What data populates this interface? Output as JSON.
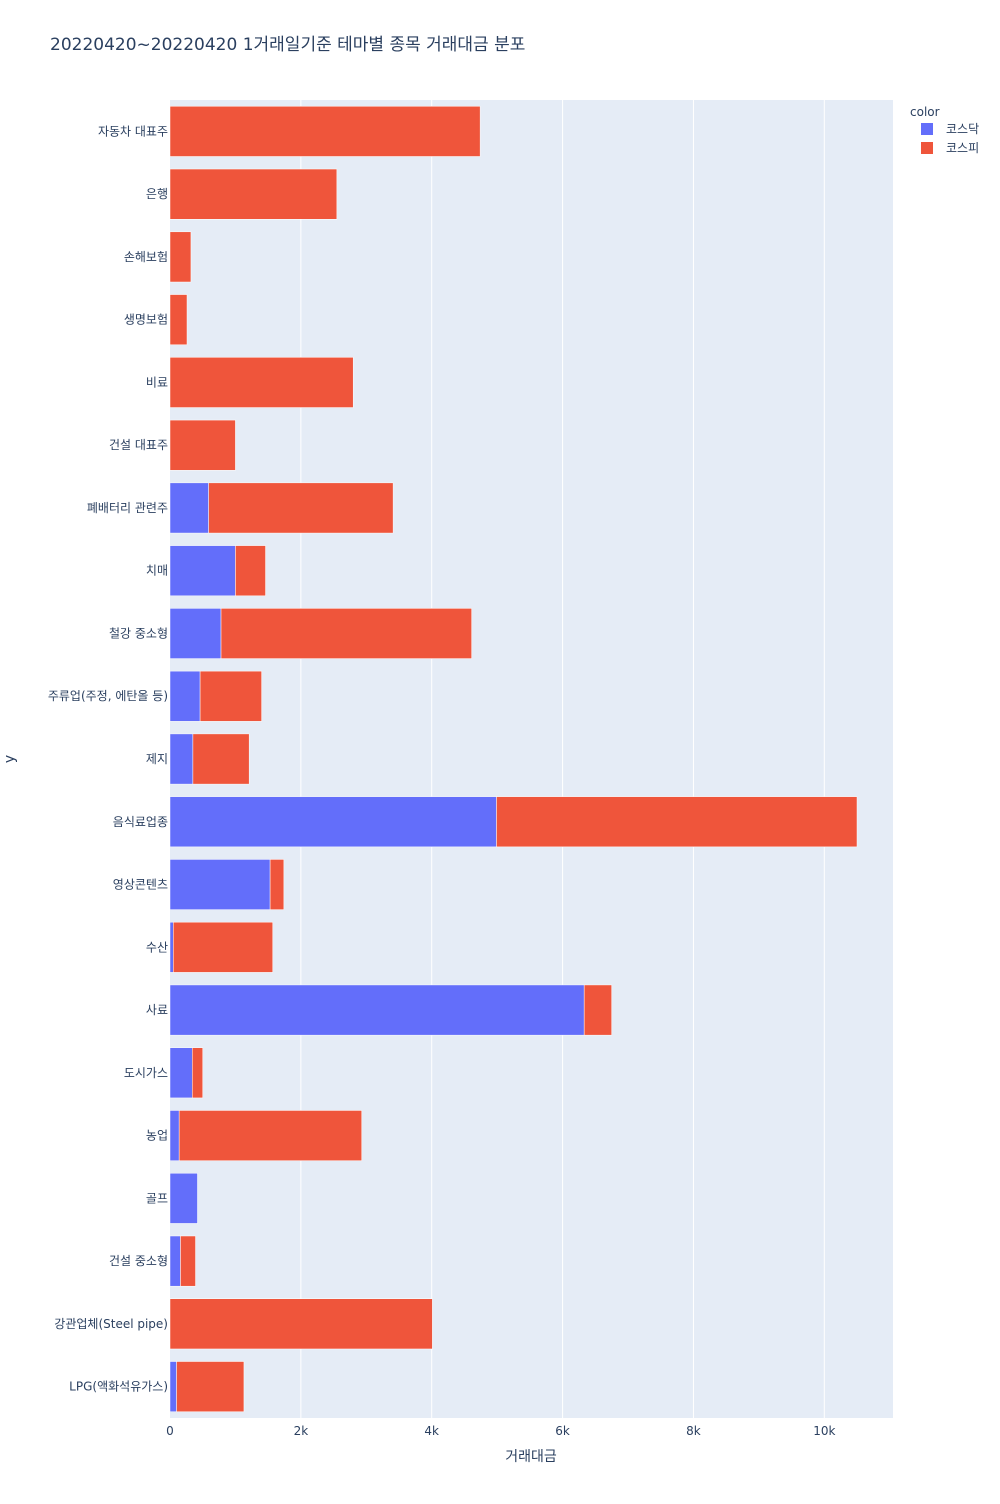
{
  "chart_data": {
    "type": "bar",
    "orientation": "horizontal",
    "barmode": "stack",
    "title": "20220420~20220420 1거래일기준 테마별 종목 거래대금 분포",
    "xlabel": "거래대금",
    "ylabel": "y",
    "xlim": [
      0,
      11050
    ],
    "xticks": [
      {
        "value": 0,
        "label": "0"
      },
      {
        "value": 2000,
        "label": "2k"
      },
      {
        "value": 4000,
        "label": "4k"
      },
      {
        "value": 6000,
        "label": "6k"
      },
      {
        "value": 8000,
        "label": "8k"
      },
      {
        "value": 10000,
        "label": "10k"
      }
    ],
    "grid": true,
    "legend": {
      "title": "color",
      "position": "top-right"
    },
    "categories": [
      "자동차 대표주",
      "은행",
      "손해보험",
      "생명보험",
      "비료",
      "건설 대표주",
      "폐배터리 관련주",
      "치매",
      "철강 중소형",
      "주류업(주정, 에탄올 등)",
      "제지",
      "음식료업종",
      "영상콘텐츠",
      "수산",
      "사료",
      "도시가스",
      "농업",
      "골프",
      "건설 중소형",
      "강관업체(Steel pipe)",
      "LPG(액화석유가스)"
    ],
    "series": [
      {
        "name": "코스닥",
        "color": "#636efa",
        "values": [
          0,
          0,
          0,
          0,
          0,
          0,
          590,
          1000,
          780,
          460,
          350,
          4990,
          1530,
          50,
          6330,
          340,
          140,
          420,
          160,
          0,
          100
        ]
      },
      {
        "name": "코스피",
        "color": "#ef553b",
        "values": [
          4740,
          2550,
          320,
          260,
          2800,
          1000,
          2820,
          460,
          3830,
          940,
          860,
          5510,
          210,
          1520,
          420,
          160,
          2790,
          0,
          230,
          4010,
          1030
        ]
      }
    ]
  }
}
